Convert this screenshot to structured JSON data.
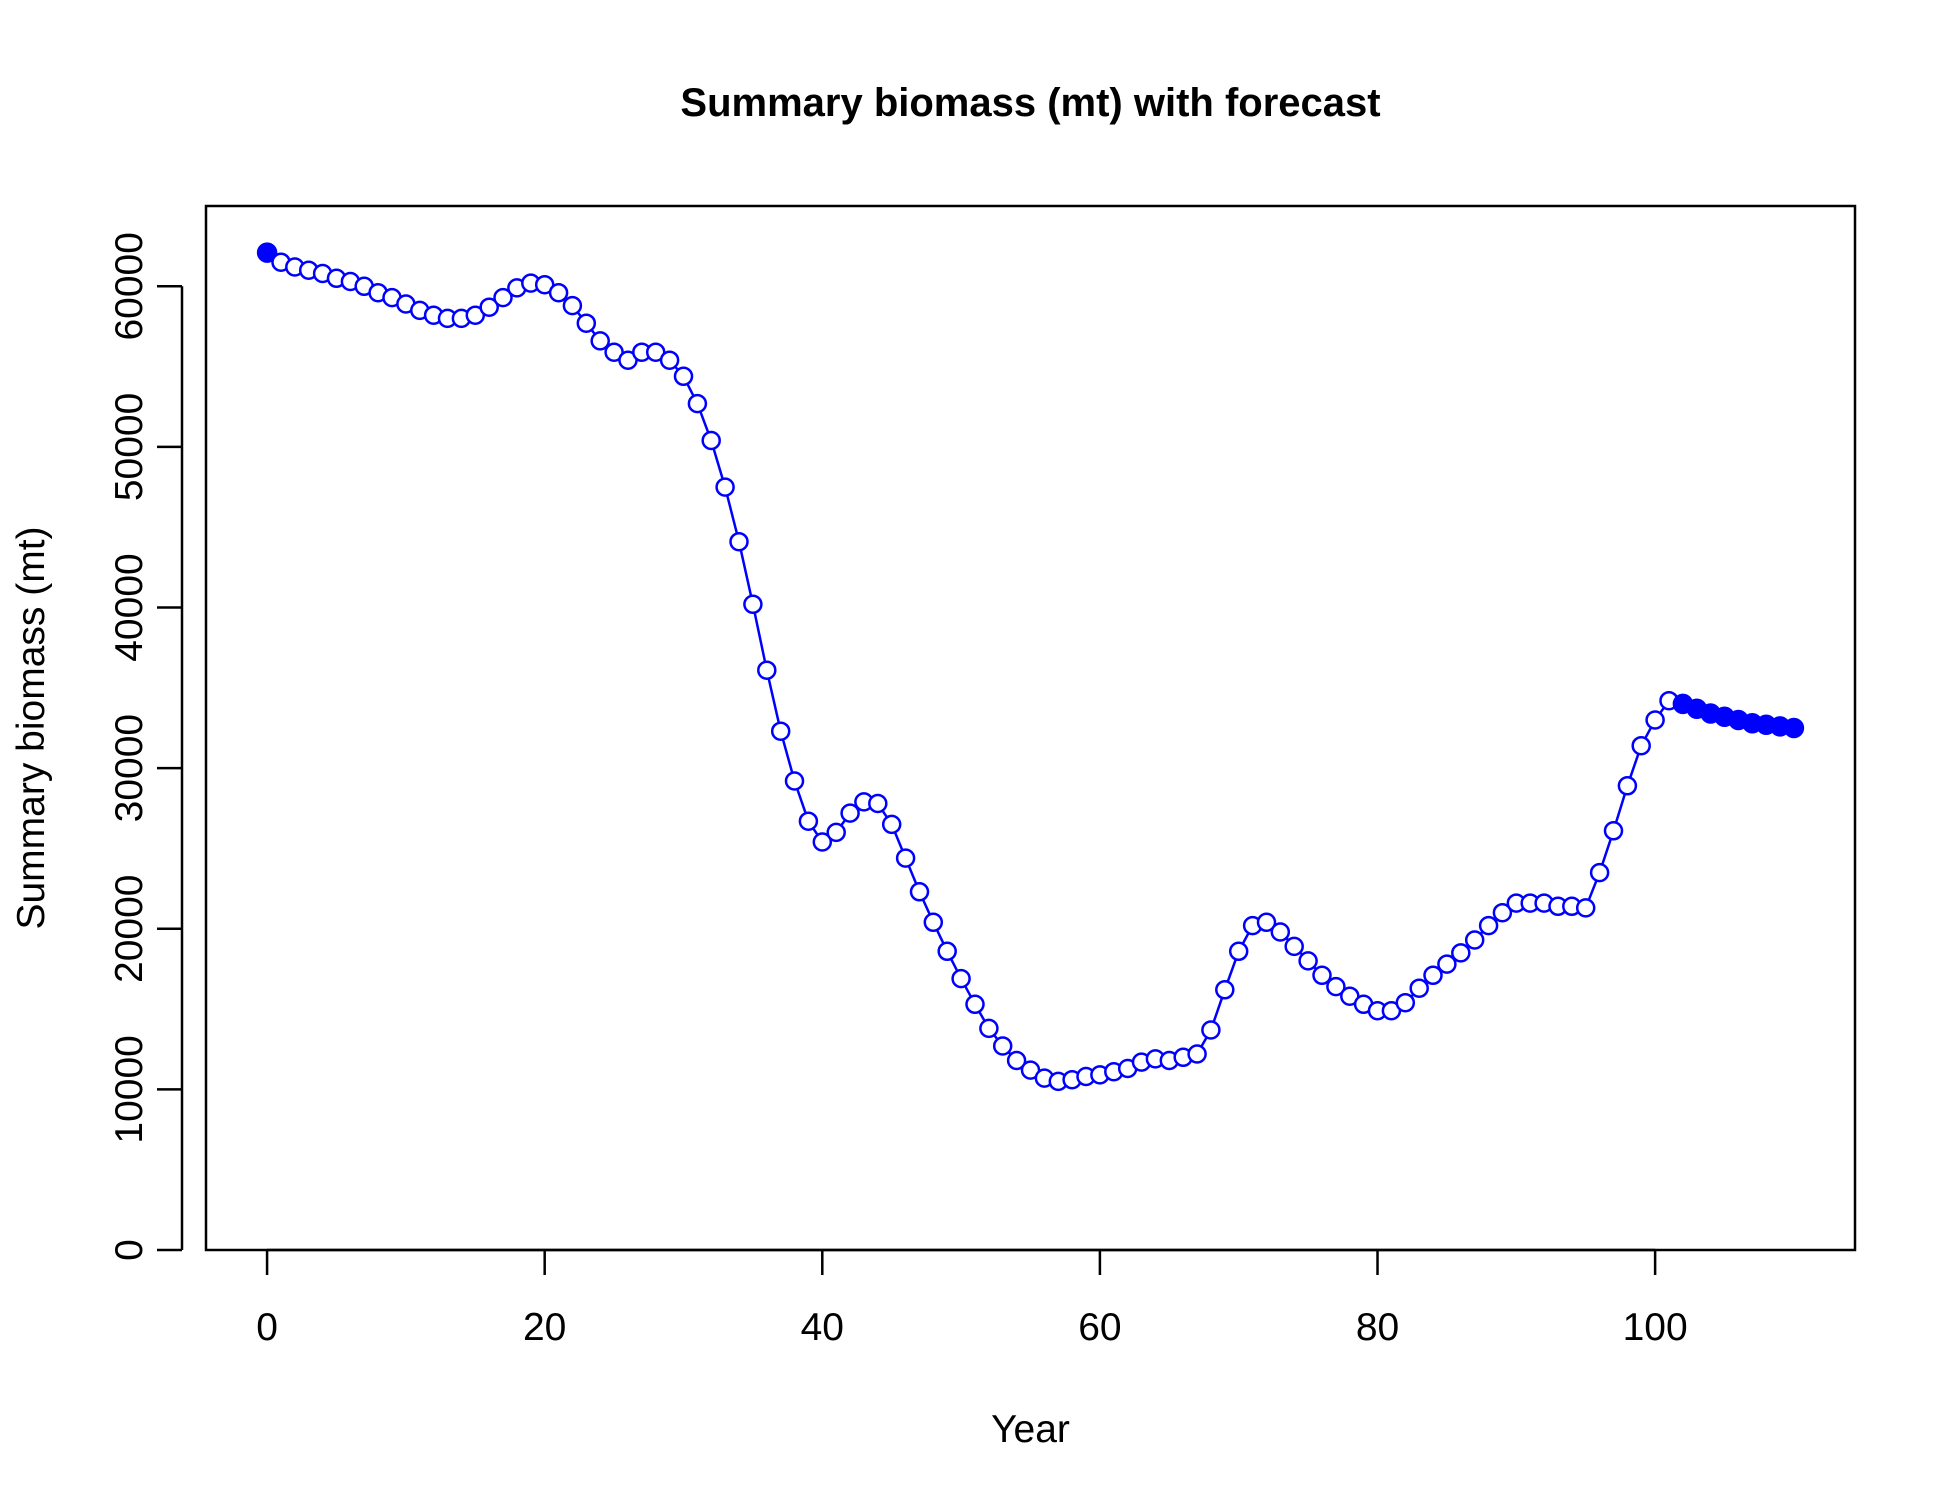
{
  "chart_data": {
    "type": "line",
    "title": "Summary biomass (mt) with forecast",
    "xlabel": "Year",
    "ylabel": "Summary biomass (mt)",
    "xlim": [
      -4.4,
      114.4
    ],
    "ylim": [
      0,
      65000
    ],
    "x_ticks": [
      0,
      20,
      40,
      60,
      80,
      100
    ],
    "y_ticks": [
      0,
      10000,
      20000,
      30000,
      40000,
      50000,
      60000
    ],
    "grid": false,
    "legend": "none",
    "color": "#0000ff",
    "series": [
      {
        "x": [
          0,
          1,
          2,
          3,
          4,
          5,
          6,
          7,
          8,
          9,
          10,
          11,
          12,
          13,
          14,
          15,
          16,
          17,
          18,
          19,
          20,
          21,
          22,
          23,
          24,
          25,
          26,
          27,
          28,
          29,
          30,
          31,
          32,
          33,
          34,
          35,
          36,
          37,
          38,
          39,
          40,
          41,
          42,
          43,
          44,
          45,
          46,
          47,
          48,
          49,
          50,
          51,
          52,
          53,
          54,
          55,
          56,
          57,
          58,
          59,
          60,
          61,
          62,
          63,
          64,
          65,
          66,
          67,
          68,
          69,
          70,
          71,
          72,
          73,
          74,
          75,
          76,
          77,
          78,
          79,
          80,
          81,
          82,
          83,
          84,
          85,
          86,
          87,
          88,
          89,
          90,
          91,
          92,
          93,
          94,
          95,
          96,
          97,
          98,
          99,
          100,
          101,
          102,
          103,
          104,
          105,
          106,
          107,
          108,
          109,
          110
        ],
        "values": [
          62100,
          61500,
          61200,
          61000,
          60800,
          60500,
          60300,
          60000,
          59600,
          59300,
          58900,
          58500,
          58200,
          58000,
          58000,
          58200,
          58700,
          59300,
          59900,
          60200,
          60100,
          59600,
          58800,
          57700,
          56600,
          55900,
          55400,
          55900,
          55900,
          55400,
          54400,
          52700,
          50400,
          47500,
          44100,
          40200,
          36100,
          32300,
          29200,
          26700,
          25400,
          26000,
          27200,
          27900,
          27800,
          26500,
          24400,
          22300,
          20400,
          18600,
          16900,
          15300,
          13800,
          12700,
          11800,
          11200,
          10700,
          10500,
          10600,
          10800,
          10900,
          11100,
          11300,
          11700,
          11900,
          11800,
          12000,
          12200,
          13700,
          16200,
          18600,
          20200,
          20400,
          19800,
          18900,
          18000,
          17100,
          16400,
          15800,
          15300,
          14900,
          14900,
          15400,
          16300,
          17100,
          17800,
          18500,
          19300,
          20200,
          21000,
          21600,
          21600,
          21600,
          21400,
          21400,
          21300,
          23500,
          26100,
          28900,
          31400,
          33000,
          34200,
          34000,
          33700,
          33400,
          33200,
          33000,
          32800,
          32700,
          32600,
          32500
        ],
        "filled_points": [
          0,
          102,
          103,
          104,
          105,
          106,
          107,
          108,
          109,
          110
        ]
      }
    ]
  }
}
